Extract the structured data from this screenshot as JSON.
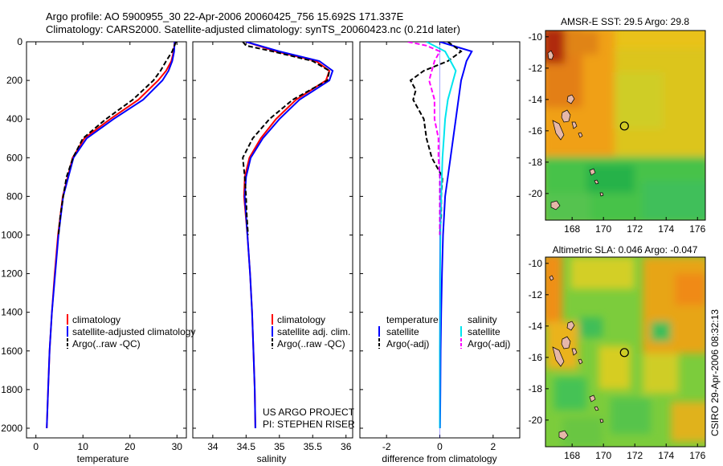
{
  "header": {
    "line1": "Argo profile: AO 5900955_30 22-Apr-2006 20060425_756 15.692S 171.337E",
    "line2": "Climatology: CARS2000. Satellite-adjusted climatology: synTS_20060423.nc (0.21d later)"
  },
  "credits": {
    "project": "US ARGO PROJECT",
    "pi": "PI: STEPHEN RISER",
    "stamp": "CSIRO 29-Apr-2006 08:32:13"
  },
  "colors": {
    "climatology": "#ff0000",
    "satellite": "#0000ff",
    "argo": "#000000",
    "sal_satellite": "#00e5ee",
    "sal_argo": "#ff00ff"
  },
  "chart_data": [
    {
      "type": "line",
      "id": "temperature",
      "xlabel": "temperature",
      "ylabel": "",
      "xlim": [
        -2,
        32
      ],
      "ylim": [
        2050,
        0
      ],
      "xticks": [
        0,
        10,
        20,
        30
      ],
      "yticks": [
        0,
        200,
        400,
        600,
        800,
        1000,
        1200,
        1400,
        1600,
        1800,
        2000
      ],
      "legend": [
        "climatology",
        "satellite-adjusted climatology",
        "Argo(..raw -QC)"
      ],
      "series": [
        {
          "name": "climatology",
          "style": "solid",
          "color": "#ff0000",
          "depth": [
            0,
            50,
            100,
            150,
            200,
            300,
            400,
            500,
            600,
            800,
            1000,
            1200,
            1400,
            1600,
            1800,
            2000
          ],
          "values": [
            29.5,
            29.3,
            28.8,
            27.7,
            26.0,
            21.8,
            15.8,
            10.3,
            7.8,
            5.7,
            4.7,
            4.0,
            3.4,
            2.9,
            2.6,
            2.3
          ]
        },
        {
          "name": "satellite-adjusted climatology",
          "style": "solid",
          "color": "#0000ff",
          "depth": [
            0,
            50,
            100,
            150,
            200,
            300,
            400,
            500,
            600,
            800,
            1000,
            1200,
            1400,
            1600,
            1800,
            2000
          ],
          "values": [
            29.5,
            29.4,
            29.0,
            28.2,
            26.9,
            22.8,
            16.5,
            10.8,
            8.0,
            5.8,
            4.8,
            4.1,
            3.4,
            2.9,
            2.6,
            2.3
          ]
        },
        {
          "name": "Argo(..raw -QC)",
          "style": "dashed",
          "color": "#000000",
          "depth": [
            0,
            50,
            100,
            150,
            200,
            300,
            400,
            500,
            600,
            700,
            800,
            900,
            1000
          ],
          "values": [
            29.8,
            29.0,
            27.7,
            26.5,
            25.0,
            20.6,
            14.9,
            10.0,
            7.9,
            6.5,
            5.8,
            5.2,
            4.8
          ]
        }
      ]
    },
    {
      "type": "line",
      "id": "salinity",
      "xlabel": "salinity",
      "xlim": [
        33.7,
        36.1
      ],
      "ylim": [
        2050,
        0
      ],
      "xticks": [
        34,
        34.5,
        35,
        35.5,
        36
      ],
      "legend": [
        "climatology",
        "satellite adj. clim.",
        "Argo(..raw -QC)"
      ],
      "series": [
        {
          "name": "climatology",
          "style": "solid",
          "color": "#ff0000",
          "depth": [
            0,
            50,
            100,
            150,
            200,
            300,
            400,
            500,
            600,
            700,
            800,
            1000,
            1200,
            1400,
            1600,
            1800,
            2000
          ],
          "values": [
            34.5,
            34.95,
            35.55,
            35.75,
            35.7,
            35.25,
            34.95,
            34.72,
            34.55,
            34.48,
            34.47,
            34.52,
            34.56,
            34.59,
            34.61,
            34.63,
            34.64
          ]
        },
        {
          "name": "satellite adj. clim.",
          "style": "solid",
          "color": "#0000ff",
          "depth": [
            0,
            50,
            100,
            150,
            200,
            300,
            400,
            500,
            600,
            700,
            800,
            1000,
            1200,
            1400,
            1600,
            1800,
            2000
          ],
          "values": [
            34.5,
            35.0,
            35.6,
            35.8,
            35.75,
            35.3,
            35.0,
            34.75,
            34.57,
            34.5,
            34.48,
            34.52,
            34.56,
            34.59,
            34.61,
            34.63,
            34.64
          ]
        },
        {
          "name": "Argo(..raw -QC)",
          "style": "dashed",
          "color": "#000000",
          "depth": [
            0,
            20,
            50,
            100,
            150,
            200,
            300,
            400,
            500,
            600,
            700,
            800,
            900,
            1000
          ],
          "values": [
            34.45,
            34.5,
            34.9,
            35.5,
            35.75,
            35.72,
            35.2,
            34.85,
            34.6,
            34.45,
            34.48,
            34.5,
            34.51,
            34.53
          ]
        }
      ]
    },
    {
      "type": "line",
      "id": "difference",
      "xlabel": "difference from climatology",
      "xlim": [
        -3,
        3
      ],
      "ylim": [
        2050,
        0
      ],
      "xticks": [
        -2,
        0,
        2
      ],
      "legend_temperature": {
        "heading": "temperature",
        "items": [
          "satellite",
          "Argo(-adj)"
        ]
      },
      "legend_salinity": {
        "heading": "salinity",
        "items": [
          "satellite",
          "Argo(-adj)"
        ]
      },
      "series": [
        {
          "name": "temperature satellite",
          "style": "solid",
          "color": "#0000ff",
          "depth": [
            0,
            50,
            100,
            150,
            200,
            300,
            400,
            500,
            600,
            800,
            1000,
            1200,
            1400,
            1600,
            1800,
            2000
          ],
          "values": [
            0.0,
            1.2,
            1.0,
            0.9,
            0.8,
            0.7,
            0.6,
            0.5,
            0.4,
            0.2,
            0.12,
            0.08,
            0.05,
            0.03,
            0.02,
            0.01
          ]
        },
        {
          "name": "temperature Argo(-adj)",
          "style": "dashed",
          "color": "#000000",
          "depth": [
            0,
            50,
            100,
            150,
            200,
            250,
            300,
            400,
            500,
            600,
            700,
            800,
            900,
            1000
          ],
          "values": [
            0.3,
            0.8,
            0.3,
            -0.6,
            -1.1,
            -0.9,
            -1.0,
            -0.6,
            -0.5,
            -0.3,
            0.1,
            0.05,
            0.05,
            0.0
          ]
        },
        {
          "name": "salinity satellite",
          "style": "solid",
          "color": "#00e5ee",
          "depth": [
            0,
            50,
            100,
            150,
            200,
            300,
            400,
            500,
            600,
            800,
            1000,
            1200,
            1400,
            1600,
            1800,
            2000
          ],
          "values": [
            -0.5,
            0.2,
            0.4,
            0.6,
            0.5,
            0.3,
            0.2,
            0.15,
            0.1,
            0.05,
            0.02,
            0.01,
            0.01,
            0.0,
            0.0,
            0.0
          ]
        },
        {
          "name": "salinity Argo(-adj)",
          "style": "dashed",
          "color": "#ff00ff",
          "depth": [
            0,
            20,
            50,
            100,
            150,
            200,
            300,
            400,
            500,
            600,
            700,
            800,
            900,
            1000
          ],
          "values": [
            -1.2,
            -0.5,
            0.0,
            -0.2,
            -0.3,
            -0.4,
            -0.2,
            -0.2,
            -0.05,
            -0.05,
            0.0,
            0.0,
            0.0,
            0.0
          ]
        }
      ]
    },
    {
      "type": "heatmap",
      "id": "sst_map",
      "title": "AMSR-E SST: 29.5  Argo: 29.8",
      "xlim": [
        166.3,
        176.5
      ],
      "ylim": [
        -21.7,
        -9.6
      ],
      "xticks": [
        168,
        170,
        172,
        174,
        176
      ],
      "yticks": [
        -10,
        -12,
        -14,
        -16,
        -18,
        -20
      ],
      "float_position": {
        "lon": 171.337,
        "lat": -15.692
      }
    },
    {
      "type": "heatmap",
      "id": "sla_map",
      "title": "Altimetric SLA: 0.046  Argo: -0.047",
      "xlim": [
        166.3,
        176.5
      ],
      "ylim": [
        -21.7,
        -9.6
      ],
      "xticks": [
        168,
        170,
        172,
        174,
        176
      ],
      "yticks": [
        -10,
        -12,
        -14,
        -16,
        -18,
        -20
      ],
      "float_position": {
        "lon": 171.337,
        "lat": -15.692
      }
    }
  ]
}
